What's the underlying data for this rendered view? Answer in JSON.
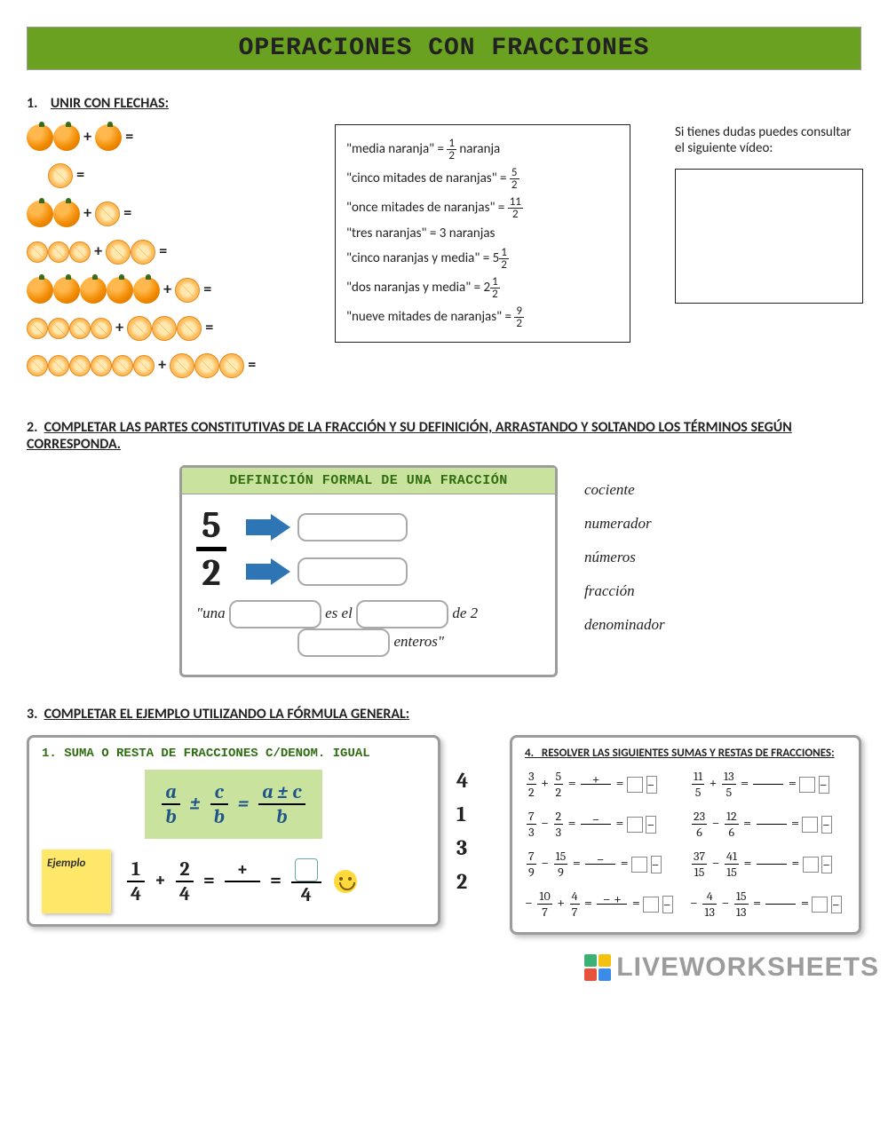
{
  "title": "OPERACIONES CON FRACCIONES",
  "section1": {
    "heading_num": "1.",
    "heading_text": "UNIR CON FLECHAS:",
    "definitions": [
      {
        "label": "\"media naranja\" = ",
        "num": "1",
        "den": "2",
        "tail": "  naranja"
      },
      {
        "label": "\"cinco mitades de naranjas\" = ",
        "num": "5",
        "den": "2",
        "tail": ""
      },
      {
        "label": "\"once mitades de naranjas\" = ",
        "num": "11",
        "den": "2",
        "tail": ""
      },
      {
        "label": "\"tres naranjas\" = 3 naranjas",
        "num": "",
        "den": "",
        "tail": ""
      },
      {
        "label": "\"cinco naranjas y media\" = 5",
        "num": "1",
        "den": "2",
        "tail": ""
      },
      {
        "label": "\"dos naranjas y media\" = 2",
        "num": "1",
        "den": "2",
        "tail": ""
      },
      {
        "label": "\"nueve mitades de naranjas\" = ",
        "num": "9",
        "den": "2",
        "tail": ""
      }
    ],
    "note_text": "Si tienes dudas puedes consultar el siguiente vídeo:"
  },
  "section2": {
    "heading_num": "2.",
    "heading_text": "COMPLETAR LAS PARTES CONSTITUTIVAS DE LA FRACCIÓN Y SU DEFINICIÓN, ARRASTANDO Y SOLTANDO LOS TÉRMINOS SEGÚN CORRESPONDA.",
    "panel_title": "DEFINICIÓN FORMAL DE UNA FRACCIÓN",
    "big_num": "5",
    "big_den": "2",
    "sentence_pre": "\"una ",
    "sentence_mid1": " es el ",
    "sentence_mid2": " de 2",
    "sentence_end": " enteros\"",
    "drag_terms": [
      "cociente",
      "numerador",
      "números",
      "fracción",
      "denominador"
    ]
  },
  "section3": {
    "heading_num": "3.",
    "heading_text": "COMPLETAR EL EJEMPLO UTILIZANDO LA FÓRMULA GENERAL:",
    "panel_a_title": "1. SUMA O RESTA DE FRACCIONES C/DENOM. IGUAL",
    "sticky_label": "Ejemplo",
    "formula_a": "a",
    "formula_b": "b",
    "formula_c": "c",
    "formula_apmc": "a ± c",
    "ex_n1": "1",
    "ex_d1": "4",
    "ex_n2": "2",
    "ex_d2": "4",
    "ex_den": "4",
    "numcol": [
      "4",
      "1",
      "3",
      "2"
    ],
    "panel_b_title_num": "4.",
    "panel_b_title": "RESOLVER LAS SIGUIENTES SUMAS Y RESTAS DE FRACCIONES:",
    "eqs": [
      {
        "a": "3",
        "b": "2",
        "op": "+",
        "c": "5",
        "d": "2",
        "sign": "+"
      },
      {
        "a": "11",
        "b": "5",
        "op": "+",
        "c": "13",
        "d": "5",
        "sign": ""
      },
      {
        "a": "7",
        "b": "3",
        "op": "−",
        "c": "2",
        "d": "3",
        "sign": "−"
      },
      {
        "a": "23",
        "b": "6",
        "op": "−",
        "c": "12",
        "d": "6",
        "sign": ""
      },
      {
        "a": "7",
        "b": "9",
        "op": "−",
        "c": "15",
        "d": "9",
        "sign": "−"
      },
      {
        "a": "37",
        "b": "15",
        "op": "−",
        "c": "41",
        "d": "15",
        "sign": ""
      },
      {
        "pre": "−",
        "a": "10",
        "b": "7",
        "op": "+",
        "c": "4",
        "d": "7",
        "sign": "− +",
        "long": true
      },
      {
        "pre": "−",
        "a": "4",
        "b": "13",
        "op": "−",
        "c": "15",
        "d": "13",
        "sign": ""
      }
    ]
  },
  "watermark": "LIVEWORKSHEETS",
  "colors": {
    "green_bar": "#6aa121",
    "green_light": "#c9e39f",
    "green_text": "#2f6d12",
    "blue_arrow": "#2e75b6",
    "sticky": "#ffe76a"
  }
}
